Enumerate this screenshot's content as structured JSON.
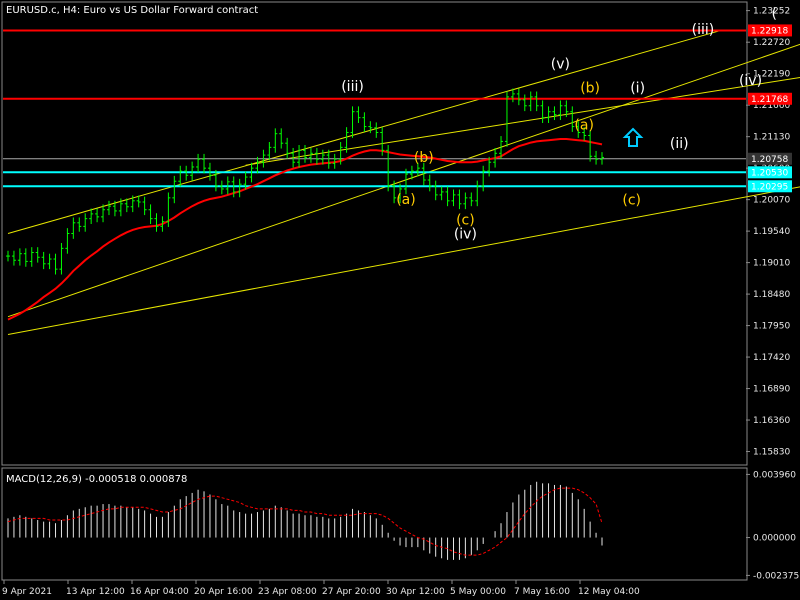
{
  "chart_data": {
    "type": "candlestick",
    "title": "EURUSD.c, H4:  Euro vs US Dollar Forward contract",
    "price_axis": {
      "ticks": [
        1.23252,
        1.2272,
        1.2219,
        1.2166,
        1.2113,
        1.206,
        1.2007,
        1.1954,
        1.1901,
        1.1848,
        1.1795,
        1.1742,
        1.1689,
        1.1636,
        1.1583
      ],
      "ylim": [
        1.1562,
        1.2338
      ]
    },
    "time_axis": {
      "ticks": [
        "9 Apr 2021",
        "13 Apr 12:00",
        "16 Apr 04:00",
        "20 Apr 16:00",
        "23 Apr 08:00",
        "27 Apr 20:00",
        "30 Apr 12:00",
        "5 May 00:00",
        "7 May 16:00",
        "12 May 04:00"
      ]
    },
    "price_series": {
      "name": "EURUSD.c",
      "color": "#00ff00",
      "close": [
        1.1912,
        1.1905,
        1.1916,
        1.1903,
        1.1918,
        1.191,
        1.1899,
        1.1907,
        1.189,
        1.1925,
        1.195,
        1.1968,
        1.1962,
        1.1975,
        1.1983,
        1.1978,
        1.199,
        1.1996,
        1.1988,
        1.2,
        1.1995,
        1.2005,
        1.2003,
        1.199,
        1.1975,
        1.1962,
        1.197,
        1.201,
        1.2038,
        1.2055,
        1.2048,
        1.2062,
        1.2075,
        1.206,
        1.2048,
        1.203,
        1.2025,
        1.2037,
        1.202,
        1.2033,
        1.2045,
        1.206,
        1.207,
        1.2082,
        1.2095,
        1.2118,
        1.2102,
        1.2085,
        1.207,
        1.209,
        1.2078,
        1.2085,
        1.2075,
        1.2082,
        1.2068,
        1.2075,
        1.2095,
        1.212,
        1.2155,
        1.2145,
        1.213,
        1.2128,
        1.212,
        1.209,
        1.203,
        1.201,
        1.2025,
        1.205,
        1.2055,
        1.206,
        1.204,
        1.203,
        1.2015,
        1.202,
        1.2005,
        1.2015,
        1.2,
        1.201,
        1.2005,
        1.203,
        1.2055,
        1.207,
        1.2085,
        1.2105,
        1.218,
        1.2185,
        1.2175,
        1.2165,
        1.218,
        1.2165,
        1.2145,
        1.2155,
        1.215,
        1.2165,
        1.2155,
        1.213,
        1.212,
        1.2115,
        1.208,
        1.2075,
        1.2078
      ],
      "extremes": {
        "max": 1.2184,
        "min": 1.1885
      }
    },
    "moving_average": {
      "name": "MA",
      "color": "#ff0000",
      "values": [
        1.1805,
        1.181,
        1.1815,
        1.1821,
        1.1828,
        1.1835,
        1.1843,
        1.185,
        1.1857,
        1.1866,
        1.1876,
        1.1887,
        1.1896,
        1.1905,
        1.1913,
        1.192,
        1.1928,
        1.1935,
        1.1941,
        1.1947,
        1.1952,
        1.1956,
        1.1959,
        1.1961,
        1.1962,
        1.1963,
        1.1966,
        1.1971,
        1.1977,
        1.1984,
        1.199,
        1.1996,
        1.2001,
        1.2005,
        1.2008,
        1.201,
        1.2012,
        1.2015,
        1.2018,
        1.2021,
        1.2025,
        1.2029,
        1.2033,
        1.2038,
        1.2043,
        1.2048,
        1.2052,
        1.2056,
        1.2059,
        1.2062,
        1.2064,
        1.2066,
        1.2067,
        1.2068,
        1.2069,
        1.207,
        1.2072,
        1.2076,
        1.2081,
        1.2085,
        1.2088,
        1.209,
        1.209,
        1.2089,
        1.2087,
        1.2085,
        1.2083,
        1.2082,
        1.2081,
        1.208,
        1.2079,
        1.2078,
        1.2076,
        1.2074,
        1.2072,
        1.2071,
        1.207,
        1.207,
        1.207,
        1.2071,
        1.2073,
        1.2075,
        1.2077,
        1.208,
        1.2086,
        1.2092,
        1.2097,
        1.21,
        1.2103,
        1.2105,
        1.2106,
        1.2107,
        1.2108,
        1.2109,
        1.2109,
        1.2108,
        1.2107,
        1.2106,
        1.2104,
        1.2102,
        1.21
      ]
    },
    "horizontal_levels": [
      {
        "price": 1.22918,
        "label": "1.22918",
        "color": "#ff0000"
      },
      {
        "price": 1.21768,
        "label": "1.21768",
        "color": "#ff0000"
      },
      {
        "price": 1.20758,
        "label": "1.20758",
        "color": "#aaaaaa"
      },
      {
        "price": 1.2053,
        "label": "1.20530",
        "color": "#00ffff"
      },
      {
        "price": 1.20295,
        "label": "1.20295",
        "color": "#00ffff"
      }
    ],
    "trend_lines": [
      {
        "from": [
          0,
          1.195
        ],
        "to": [
          120,
          1.22918
        ]
      },
      {
        "from": [
          0,
          1.181
        ],
        "to": [
          160,
          1.236
        ]
      },
      {
        "from": [
          0,
          1.178
        ],
        "to": [
          162,
          1.2082
        ]
      },
      {
        "from": [
          40,
          1.2065
        ],
        "to": [
          162,
          1.2258
        ]
      },
      {
        "from": [
          140,
          1.218
        ],
        "to": [
          162,
          1.2082
        ]
      }
    ],
    "wave_labels": [
      {
        "text": "(iii)",
        "bar": 58,
        "price": 1.219,
        "color": "#ffffff"
      },
      {
        "text": "(a)",
        "bar": 67,
        "price": 1.2,
        "color": "#ffcc00"
      },
      {
        "text": "(b)",
        "bar": 70,
        "price": 1.207,
        "color": "#ffcc00"
      },
      {
        "text": "(c)",
        "bar": 77,
        "price": 1.1965,
        "color": "#ffcc00"
      },
      {
        "text": "(iv)",
        "bar": 77,
        "price": 1.1942,
        "color": "#ffffff"
      },
      {
        "text": "(v)",
        "bar": 93,
        "price": 1.2228,
        "color": "#ffffff"
      },
      {
        "text": "(b)",
        "bar": 98,
        "price": 1.2187,
        "color": "#ffcc00"
      },
      {
        "text": "(a)",
        "bar": 97,
        "price": 1.2125,
        "color": "#ffcc00"
      },
      {
        "text": "(i)",
        "bar": 106,
        "price": 1.2187,
        "color": "#ffffff"
      },
      {
        "text": "(ii)",
        "bar": 113,
        "price": 1.2094,
        "color": "#ffffff"
      },
      {
        "text": "(c)",
        "bar": 105,
        "price": 1.1999,
        "color": "#ffcc00"
      },
      {
        "text": "(iii)",
        "bar": 117,
        "price": 1.2286,
        "color": "#ffffff"
      },
      {
        "text": "(iv)",
        "bar": 125,
        "price": 1.22,
        "color": "#ffffff"
      },
      {
        "text": "(",
        "bar": 129,
        "price": 1.2313,
        "color": "#ffffff"
      }
    ],
    "macd": {
      "label": "MACD(12,26,9) -0.000518 0.000878",
      "ticks": [
        0.00396,
        0.0,
        -0.002375
      ],
      "ylim": [
        -0.0026,
        0.0043
      ],
      "histogram": [
        0.0012,
        0.0013,
        0.0014,
        0.0013,
        0.0012,
        0.0011,
        0.001,
        0.001,
        0.0009,
        0.0011,
        0.0014,
        0.0017,
        0.0018,
        0.0019,
        0.002,
        0.002,
        0.0021,
        0.0021,
        0.002,
        0.002,
        0.0019,
        0.0019,
        0.0018,
        0.0017,
        0.0015,
        0.0013,
        0.0013,
        0.0016,
        0.002,
        0.0024,
        0.0026,
        0.0028,
        0.003,
        0.0029,
        0.0027,
        0.0024,
        0.0021,
        0.002,
        0.0017,
        0.0016,
        0.0015,
        0.0015,
        0.0016,
        0.0017,
        0.0018,
        0.002,
        0.0019,
        0.0017,
        0.0015,
        0.0015,
        0.0014,
        0.0014,
        0.0013,
        0.0013,
        0.0012,
        0.0012,
        0.0013,
        0.0015,
        0.0018,
        0.0017,
        0.0016,
        0.0014,
        0.0012,
        0.0008,
        0.0003,
        -0.0002,
        -0.0005,
        -0.0006,
        -0.0006,
        -0.0006,
        -0.0008,
        -0.001,
        -0.0012,
        -0.0013,
        -0.0014,
        -0.0014,
        -0.0014,
        -0.0013,
        -0.0011,
        -0.0008,
        -0.0004,
        0.0,
        0.0004,
        0.0009,
        0.0016,
        0.0022,
        0.0027,
        0.003,
        0.0033,
        0.0035,
        0.0034,
        0.0034,
        0.0033,
        0.0033,
        0.0032,
        0.0028,
        0.0024,
        0.0018,
        0.001,
        0.0003,
        -0.0005
      ],
      "signal": [
        0.001,
        0.0011,
        0.0012,
        0.0012,
        0.0012,
        0.0012,
        0.0012,
        0.0011,
        0.0011,
        0.0011,
        0.0011,
        0.0012,
        0.0013,
        0.0014,
        0.0015,
        0.0016,
        0.0017,
        0.0018,
        0.0018,
        0.0019,
        0.0019,
        0.0019,
        0.0019,
        0.0019,
        0.0018,
        0.0017,
        0.0016,
        0.0016,
        0.0017,
        0.0018,
        0.002,
        0.0022,
        0.0024,
        0.0025,
        0.0026,
        0.0026,
        0.0025,
        0.0024,
        0.0023,
        0.0022,
        0.002,
        0.0019,
        0.0018,
        0.0018,
        0.0018,
        0.0018,
        0.0018,
        0.0018,
        0.0017,
        0.0017,
        0.0016,
        0.0016,
        0.0015,
        0.0015,
        0.0014,
        0.0014,
        0.0014,
        0.0014,
        0.0014,
        0.0015,
        0.0015,
        0.0015,
        0.0015,
        0.0014,
        0.0012,
        0.0009,
        0.0006,
        0.0004,
        0.0002,
        0.0,
        -0.0001,
        -0.0003,
        -0.0005,
        -0.0006,
        -0.0007,
        -0.0009,
        -0.001,
        -0.0011,
        -0.0011,
        -0.0011,
        -0.001,
        -0.0008,
        -0.0006,
        -0.0003,
        0.0,
        0.0005,
        0.001,
        0.0015,
        0.0019,
        0.0023,
        0.0026,
        0.0028,
        0.003,
        0.0031,
        0.0031,
        0.0031,
        0.003,
        0.0028,
        0.0025,
        0.0021,
        0.0009
      ]
    }
  }
}
